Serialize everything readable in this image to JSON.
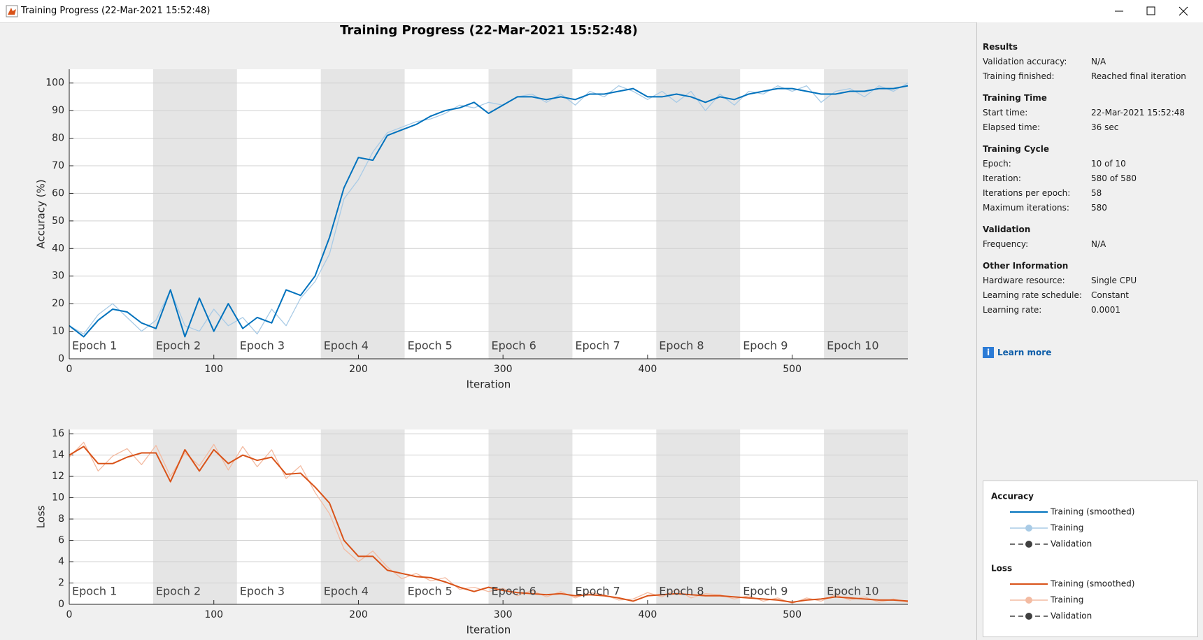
{
  "window": {
    "title": "Training Progress (22-Mar-2021 15:52:48)"
  },
  "chart_data": [
    {
      "type": "line",
      "title": "Training Progress (22-Mar-2021 15:52:48)",
      "xlabel": "Iteration",
      "ylabel": "Accuracy (%)",
      "x": [
        0,
        10,
        20,
        30,
        40,
        50,
        60,
        70,
        80,
        90,
        100,
        110,
        120,
        130,
        140,
        150,
        160,
        170,
        180,
        190,
        200,
        210,
        220,
        230,
        240,
        250,
        260,
        270,
        280,
        290,
        300,
        310,
        320,
        330,
        340,
        350,
        360,
        370,
        380,
        390,
        400,
        410,
        420,
        430,
        440,
        450,
        460,
        470,
        480,
        490,
        500,
        510,
        520,
        530,
        540,
        550,
        560,
        570,
        580
      ],
      "xlim": [
        0,
        580
      ],
      "ylim": [
        0,
        105
      ],
      "xticks": [
        0,
        100,
        200,
        300,
        400,
        500
      ],
      "yticks": [
        0,
        10,
        20,
        30,
        40,
        50,
        60,
        70,
        80,
        90,
        100
      ],
      "grid": true,
      "epoch_length": 58,
      "epoch_labels": [
        "Epoch 1",
        "Epoch 2",
        "Epoch 3",
        "Epoch 4",
        "Epoch 5",
        "Epoch 6",
        "Epoch 7",
        "Epoch 8",
        "Epoch 9",
        "Epoch 10"
      ],
      "legend_title": "Accuracy",
      "legend_validation": "Validation",
      "series": [
        {
          "name": "Training (smoothed)",
          "color": "#0072bd",
          "values": [
            12,
            8,
            14,
            18,
            17,
            13,
            11,
            25,
            8,
            22,
            10,
            20,
            11,
            15,
            13,
            25,
            23,
            30,
            44,
            62,
            73,
            72,
            81,
            83,
            85,
            88,
            90,
            91,
            93,
            89,
            92,
            95,
            95,
            94,
            95,
            94,
            96,
            96,
            97,
            98,
            95,
            95,
            96,
            95,
            93,
            95,
            94,
            96,
            97,
            98,
            98,
            97,
            96,
            96,
            97,
            97,
            98,
            98,
            99
          ]
        },
        {
          "name": "Training",
          "color": "#a9cbe6",
          "values": [
            12,
            9,
            16,
            20,
            15,
            10,
            14,
            25,
            12,
            10,
            18,
            12,
            15,
            9,
            18,
            12,
            22,
            28,
            38,
            58,
            65,
            75,
            82,
            84,
            86,
            87,
            89,
            92,
            91,
            93,
            92,
            95,
            96,
            93,
            96,
            92,
            97,
            95,
            99,
            97,
            94,
            97,
            93,
            97,
            90,
            96,
            92,
            97,
            96,
            99,
            97,
            99,
            93,
            97,
            98,
            95,
            99,
            97,
            100
          ]
        }
      ]
    },
    {
      "type": "line",
      "xlabel": "Iteration",
      "ylabel": "Loss",
      "x": [
        0,
        10,
        20,
        30,
        40,
        50,
        60,
        70,
        80,
        90,
        100,
        110,
        120,
        130,
        140,
        150,
        160,
        170,
        180,
        190,
        200,
        210,
        220,
        230,
        240,
        250,
        260,
        270,
        280,
        290,
        300,
        310,
        320,
        330,
        340,
        350,
        360,
        370,
        380,
        390,
        400,
        410,
        420,
        430,
        440,
        450,
        460,
        470,
        480,
        490,
        500,
        510,
        520,
        530,
        540,
        550,
        560,
        570,
        580
      ],
      "xlim": [
        0,
        580
      ],
      "ylim": [
        0,
        16.4
      ],
      "xticks": [
        0,
        100,
        200,
        300,
        400,
        500
      ],
      "yticks": [
        0,
        2,
        4,
        6,
        8,
        10,
        12,
        14,
        16
      ],
      "grid": true,
      "epoch_length": 58,
      "epoch_labels": [
        "Epoch 1",
        "Epoch 2",
        "Epoch 3",
        "Epoch 4",
        "Epoch 5",
        "Epoch 6",
        "Epoch 7",
        "Epoch 8",
        "Epoch 9",
        "Epoch 10"
      ],
      "legend_title": "Loss",
      "legend_validation": "Validation",
      "series": [
        {
          "name": "Training (smoothed)",
          "color": "#d95319",
          "values": [
            14,
            14.8,
            13.2,
            13.2,
            13.8,
            14.2,
            14.2,
            11.5,
            14.5,
            12.5,
            14.5,
            13.2,
            14,
            13.5,
            13.8,
            12.2,
            12.3,
            11,
            9.5,
            6,
            4.5,
            4.5,
            3.2,
            2.9,
            2.6,
            2.5,
            2.1,
            1.6,
            1.2,
            1.6,
            1.3,
            1.1,
            1,
            0.9,
            1,
            0.8,
            0.9,
            0.8,
            0.6,
            0.3,
            0.8,
            0.9,
            1,
            0.9,
            0.8,
            0.8,
            0.7,
            0.6,
            0.5,
            0.4,
            0.2,
            0.4,
            0.5,
            0.7,
            0.6,
            0.5,
            0.4,
            0.4,
            0.3
          ]
        },
        {
          "name": "Training",
          "color": "#f3bba2",
          "values": [
            13.8,
            15.2,
            12.5,
            13.9,
            14.6,
            13.1,
            14.9,
            12,
            14.2,
            13,
            15,
            12.6,
            14.8,
            12.9,
            14.5,
            11.8,
            13,
            10.5,
            8.5,
            5.2,
            4,
            5,
            3.5,
            2.4,
            2.9,
            2.2,
            2.5,
            1.4,
            1.6,
            1.2,
            1.5,
            0.8,
            1.3,
            0.7,
            1.2,
            0.6,
            1.1,
            0.9,
            0.4,
            0.5,
            1.1,
            0.7,
            1.4,
            0.6,
            1.0,
            0.9,
            0.5,
            0.8,
            0.3,
            0.6,
            0.1,
            0.6,
            0.3,
            0.9,
            0.4,
            0.7,
            0.2,
            0.5,
            0.2
          ]
        }
      ]
    }
  ],
  "results": {
    "sections": [
      {
        "title": "Results",
        "rows": [
          [
            "Validation accuracy:",
            "N/A"
          ],
          [
            "Training finished:",
            "Reached final iteration"
          ]
        ]
      },
      {
        "title": "Training Time",
        "rows": [
          [
            "Start time:",
            "22-Mar-2021 15:52:48"
          ],
          [
            "Elapsed time:",
            "36 sec"
          ]
        ]
      },
      {
        "title": "Training Cycle",
        "rows": [
          [
            "Epoch:",
            "10 of 10"
          ],
          [
            "Iteration:",
            "580 of 580"
          ],
          [
            "Iterations per epoch:",
            "58"
          ],
          [
            "Maximum iterations:",
            "580"
          ]
        ]
      },
      {
        "title": "Validation",
        "rows": [
          [
            "Frequency:",
            "N/A"
          ]
        ]
      },
      {
        "title": "Other Information",
        "rows": [
          [
            "Hardware resource:",
            "Single CPU"
          ],
          [
            "Learning rate schedule:",
            "Constant"
          ],
          [
            "Learning rate:",
            "0.0001"
          ]
        ]
      }
    ],
    "link": "Learn more"
  }
}
